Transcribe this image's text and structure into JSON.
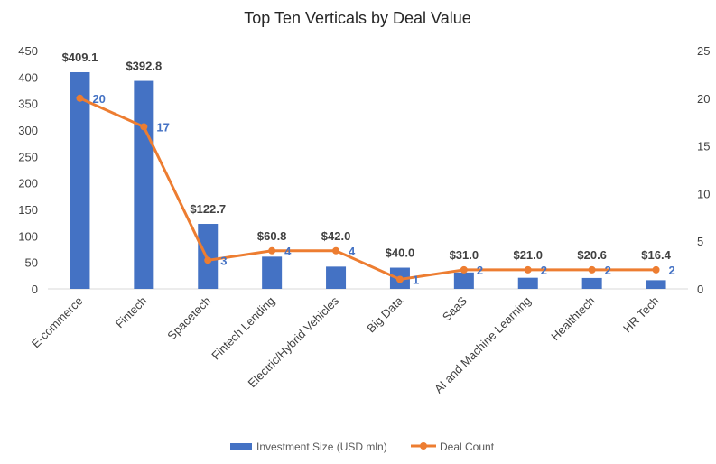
{
  "chart_data": {
    "type": "bar",
    "title": "Top Ten Verticals by Deal Value",
    "categories": [
      "E-commerce",
      "Fintech",
      "Spacetech",
      "Fintech Lending",
      "Electric/Hybrid Vehicles",
      "Big Data",
      "SaaS",
      "AI and Machine Learning",
      "Healthtech",
      "HR Tech"
    ],
    "series": [
      {
        "name": "Investment Size (USD mln)",
        "type": "bar",
        "axis": "left",
        "color": "#4472C4",
        "values": [
          409.1,
          392.8,
          122.7,
          60.8,
          42.0,
          40.0,
          31.0,
          21.0,
          20.6,
          16.4
        ],
        "labels": [
          "$409.1",
          "$392.8",
          "$122.7",
          "$60.8",
          "$42.0",
          "$40.0",
          "$31.0",
          "$21.0",
          "$20.6",
          "$16.4"
        ]
      },
      {
        "name": "Deal Count",
        "type": "line",
        "axis": "right",
        "color": "#ED7D31",
        "label_color": "#4472C4",
        "values": [
          20,
          17,
          3,
          4,
          4,
          1,
          2,
          2,
          2,
          2
        ],
        "labels": [
          "20",
          "17",
          "3",
          "4",
          "4",
          "1",
          "2",
          "2",
          "2",
          "2"
        ]
      }
    ],
    "y_left": {
      "range": [
        0,
        450
      ],
      "ticks": [
        "0",
        "50",
        "100",
        "150",
        "200",
        "250",
        "300",
        "350",
        "400",
        "450"
      ]
    },
    "y_right": {
      "range": [
        0,
        25
      ],
      "ticks": [
        "0",
        "5",
        "10",
        "15",
        "20",
        "25"
      ]
    },
    "grid": false,
    "legend": "bottom"
  }
}
